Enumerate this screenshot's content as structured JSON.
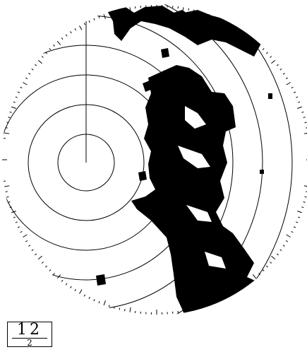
{
  "range_box": {
    "range": "12",
    "rings": "2"
  }
}
